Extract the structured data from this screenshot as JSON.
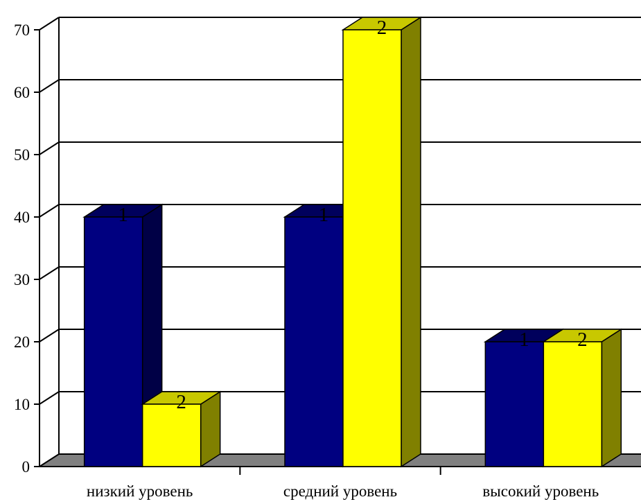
{
  "chart_data": {
    "type": "bar",
    "title": "",
    "xlabel": "",
    "ylabel": "",
    "ylim": [
      0,
      70
    ],
    "yticks": [
      0,
      10,
      20,
      30,
      40,
      50,
      60,
      70
    ],
    "ytick_labels": [
      "0",
      "10",
      "20",
      "30",
      "40",
      "50",
      "60",
      "70"
    ],
    "grid": true,
    "legend": "none",
    "style": "3d-columns",
    "categories": [
      "низкий уровень",
      "средний уровень",
      "высокий уровень"
    ],
    "series": [
      {
        "values": [
          40,
          40,
          20
        ],
        "data_labels": [
          "1",
          "1",
          "1"
        ],
        "color_front": "#000080",
        "color_top": "#00005c",
        "color_side": "#000046"
      },
      {
        "values": [
          10,
          70,
          20
        ],
        "data_labels": [
          "2",
          "2",
          "2"
        ],
        "color_front": "#ffff00",
        "color_top": "#c8c800",
        "color_side": "#808000"
      }
    ],
    "floor_color": "#808080"
  }
}
